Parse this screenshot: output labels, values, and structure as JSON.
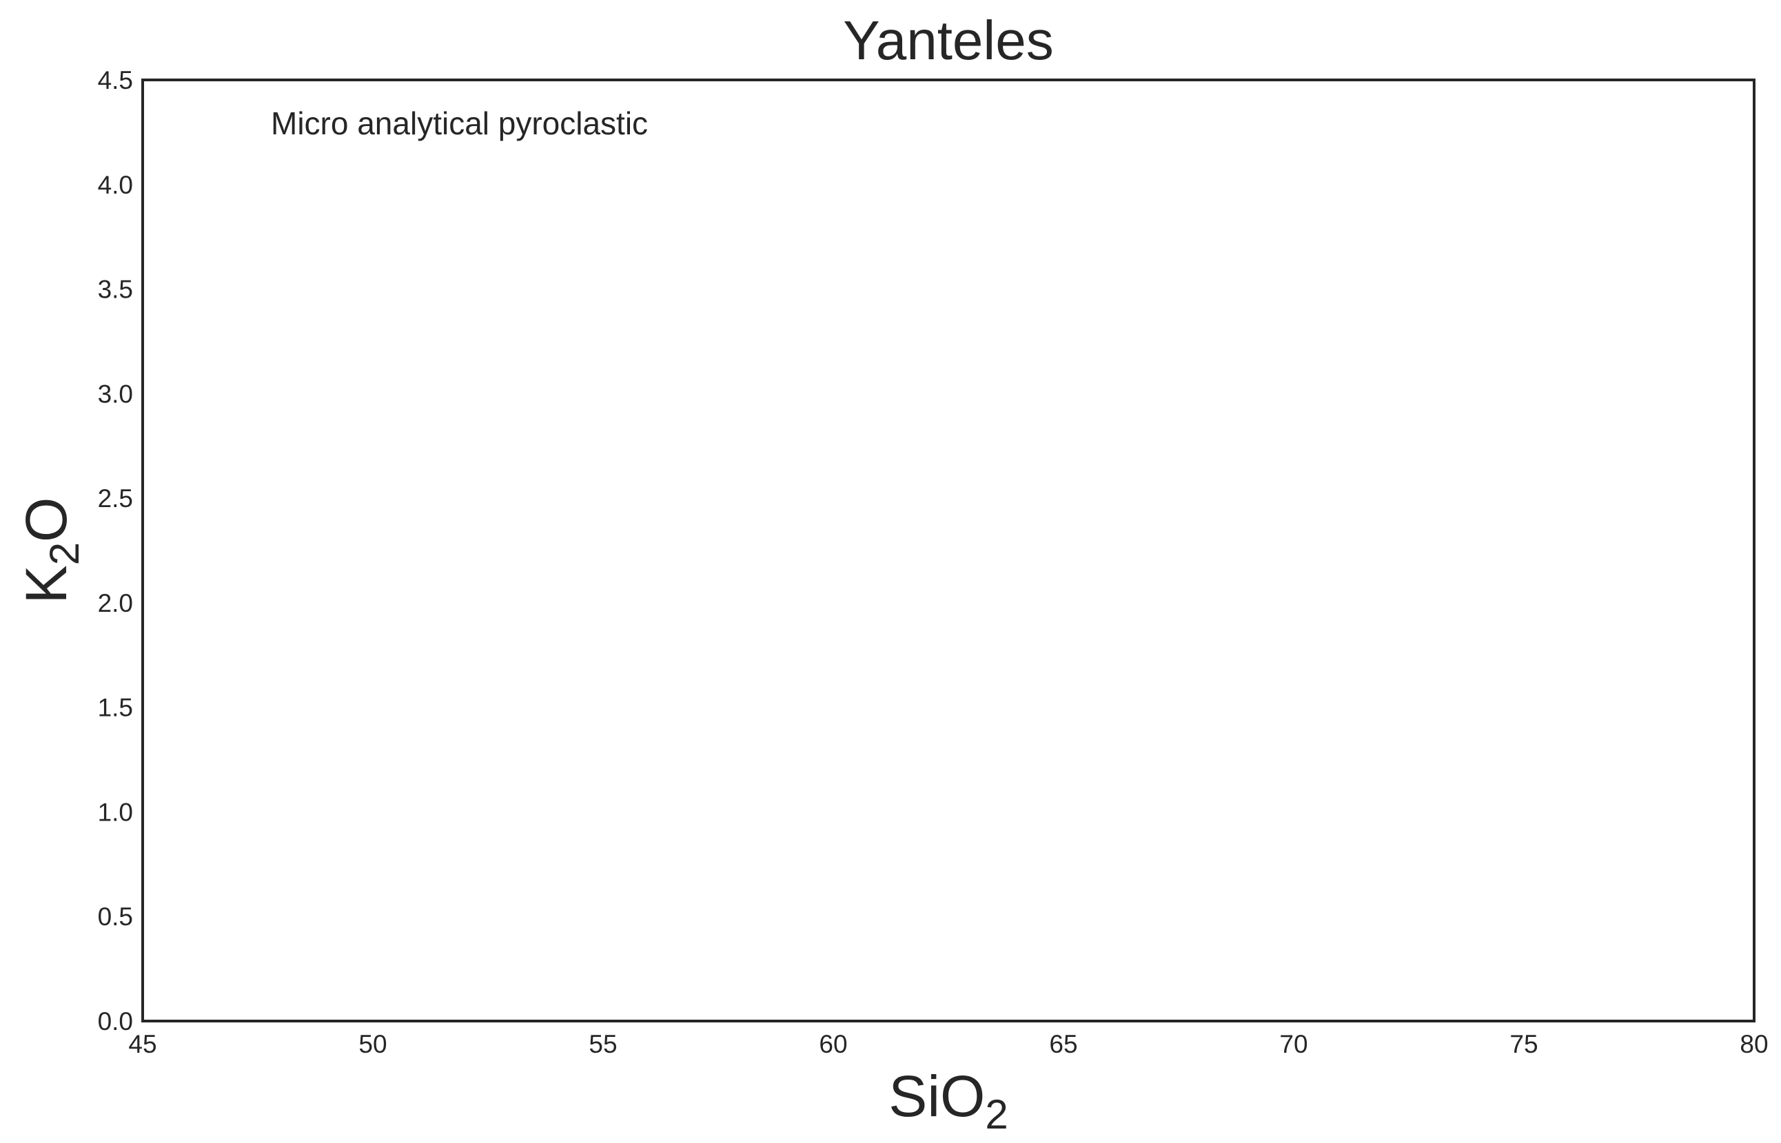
{
  "chart_data": {
    "type": "scatter",
    "title": "Yanteles",
    "xlabel": {
      "base": "SiO",
      "sub": "2"
    },
    "ylabel": {
      "base": "K",
      "sub": "2",
      "suffix": "O"
    },
    "xlim": [
      45,
      80
    ],
    "ylim": [
      0,
      4.5
    ],
    "xticks": [
      "45",
      "50",
      "55",
      "60",
      "65",
      "70",
      "75",
      "80"
    ],
    "yticks": [
      "0.0",
      "0.5",
      "1.0",
      "1.5",
      "2.0",
      "2.5",
      "3.0",
      "3.5",
      "4.0",
      "4.5"
    ],
    "annotation": "Micro analytical pyroclastic",
    "grid": false,
    "series": []
  },
  "colors": {
    "frame": "#262626",
    "text": "#262626",
    "background": "#ffffff"
  }
}
